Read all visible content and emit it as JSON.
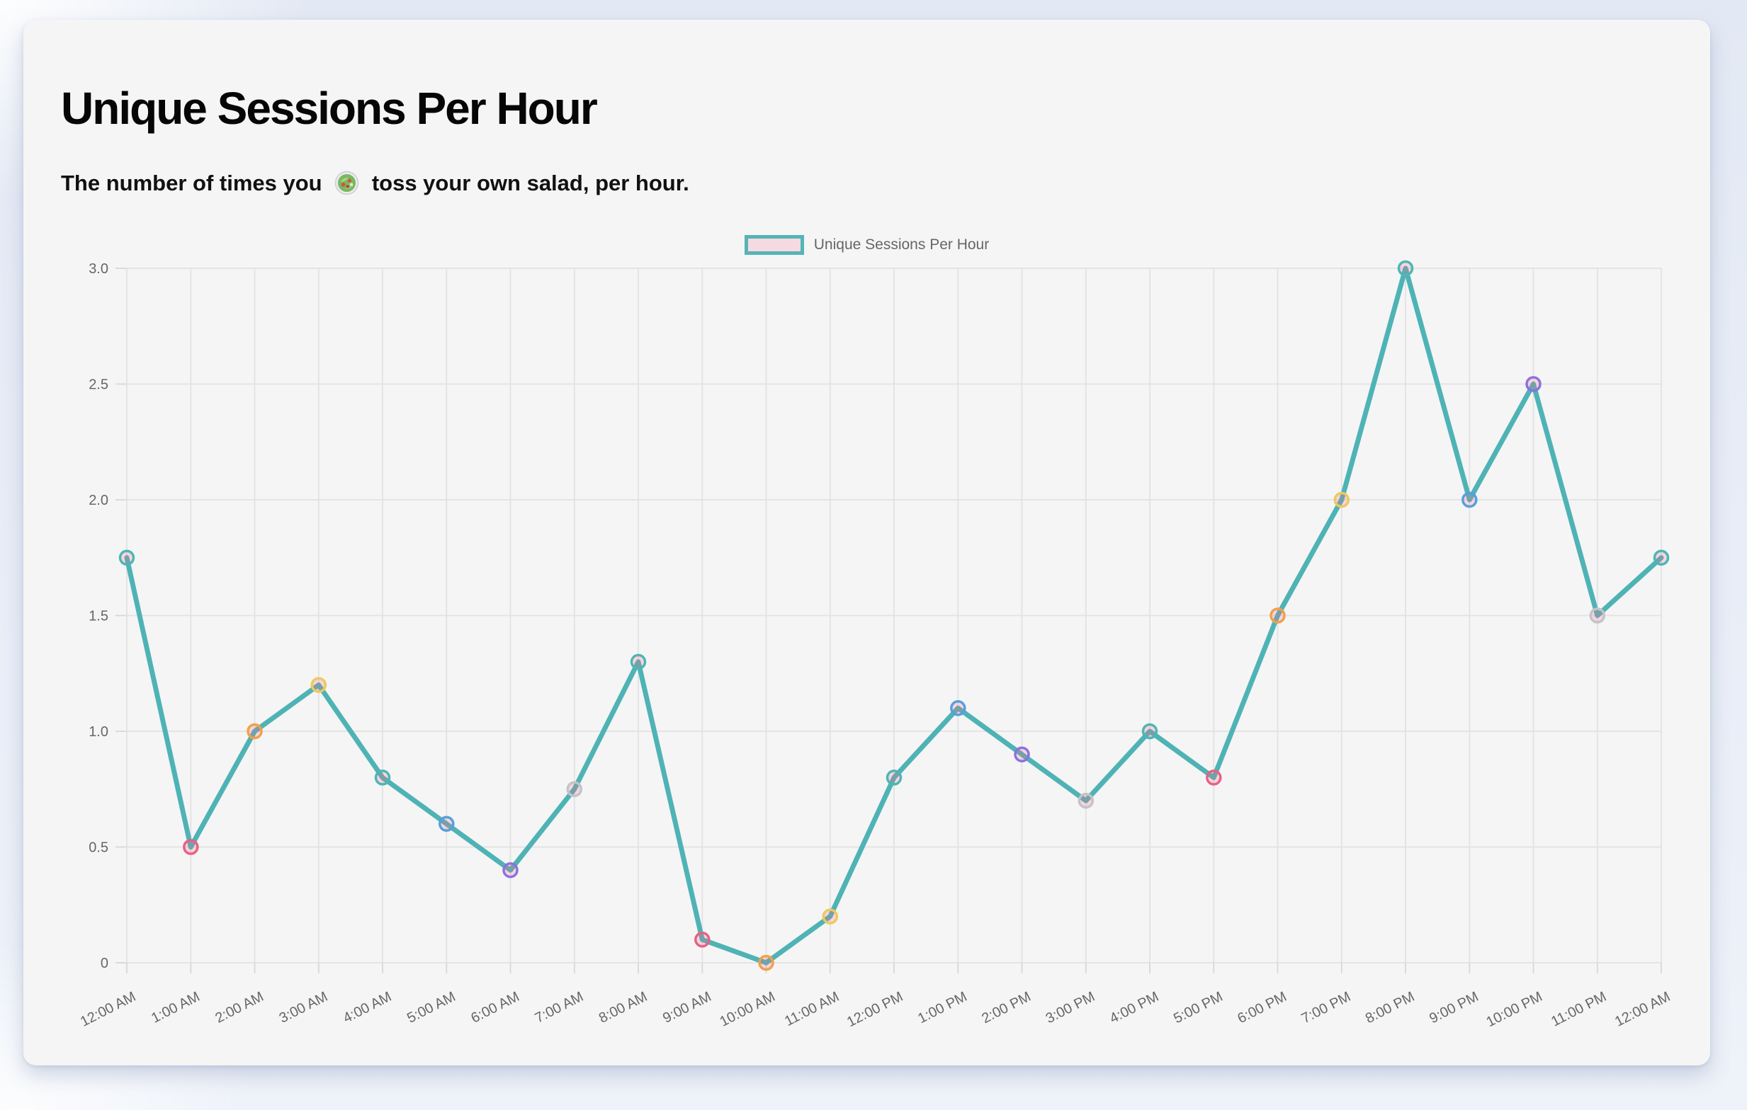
{
  "header": {
    "title": "Unique Sessions Per Hour",
    "subtitle_before_emoji": "The number of times you ",
    "salad_emoji": "🥗",
    "subtitle_after_emoji": " toss your own salad, per hour."
  },
  "legend": {
    "label": "Unique Sessions Per Hour",
    "swatch_border_color": "#54b4b6",
    "swatch_fill_color": "rgba(255,99,132,0.18)"
  },
  "chart_data": {
    "type": "line",
    "title": "Unique Sessions Per Hour",
    "categories": [
      "12:00 AM",
      "1:00 AM",
      "2:00 AM",
      "3:00 AM",
      "4:00 AM",
      "5:00 AM",
      "6:00 AM",
      "7:00 AM",
      "8:00 AM",
      "9:00 AM",
      "10:00 AM",
      "11:00 AM",
      "12:00 PM",
      "1:00 PM",
      "2:00 PM",
      "3:00 PM",
      "4:00 PM",
      "5:00 PM",
      "6:00 PM",
      "7:00 PM",
      "8:00 PM",
      "9:00 PM",
      "10:00 PM",
      "11:00 PM",
      "12:00 AM"
    ],
    "values": [
      1.75,
      0.5,
      1.0,
      1.2,
      0.8,
      0.6,
      0.4,
      0.75,
      1.3,
      0.1,
      0.0,
      0.2,
      0.8,
      1.1,
      0.9,
      0.7,
      1.0,
      0.8,
      1.5,
      2.0,
      3.0,
      2.0,
      2.5,
      1.5,
      1.75
    ],
    "ylim": [
      0,
      3
    ],
    "ytick_step": 0.5,
    "ytick_labels": [
      "0",
      "0.5",
      "1.0",
      "1.5",
      "2.0",
      "2.5",
      "3.0"
    ],
    "grid": true,
    "legend_position": "top",
    "xlabel": "",
    "ylabel": "",
    "x_label_rotation_deg": -27,
    "line_color": "#4fb3b5",
    "point_fill": "rgba(255,99,132,0.22)",
    "point_border_colors": [
      "#4db6b6",
      "#e76283",
      "#f0a04a",
      "#edc95d",
      "#4db6b6",
      "#55a0dd",
      "#8b72e0",
      "#c2c4c8",
      "#4db6b6",
      "#e76283",
      "#f0a04a",
      "#edc95d",
      "#4db6b6",
      "#55a0dd",
      "#8b72e0",
      "#c2c4c8",
      "#4db6b6",
      "#e76283",
      "#f0a04a",
      "#edc95d",
      "#4db6b6",
      "#55a0dd",
      "#8b72e0",
      "#c2c4c8",
      "#4db6b6"
    ],
    "palette": {
      "teal": "#4db6b6",
      "red": "#e76283",
      "orange": "#f0a04a",
      "yellow": "#edc95d",
      "blue": "#55a0dd",
      "purple": "#8b72e0",
      "grey": "#c2c4c8"
    },
    "grid_color": "#e2e2e2",
    "tick_color": "#d7d7d7",
    "label_color": "#666666"
  }
}
